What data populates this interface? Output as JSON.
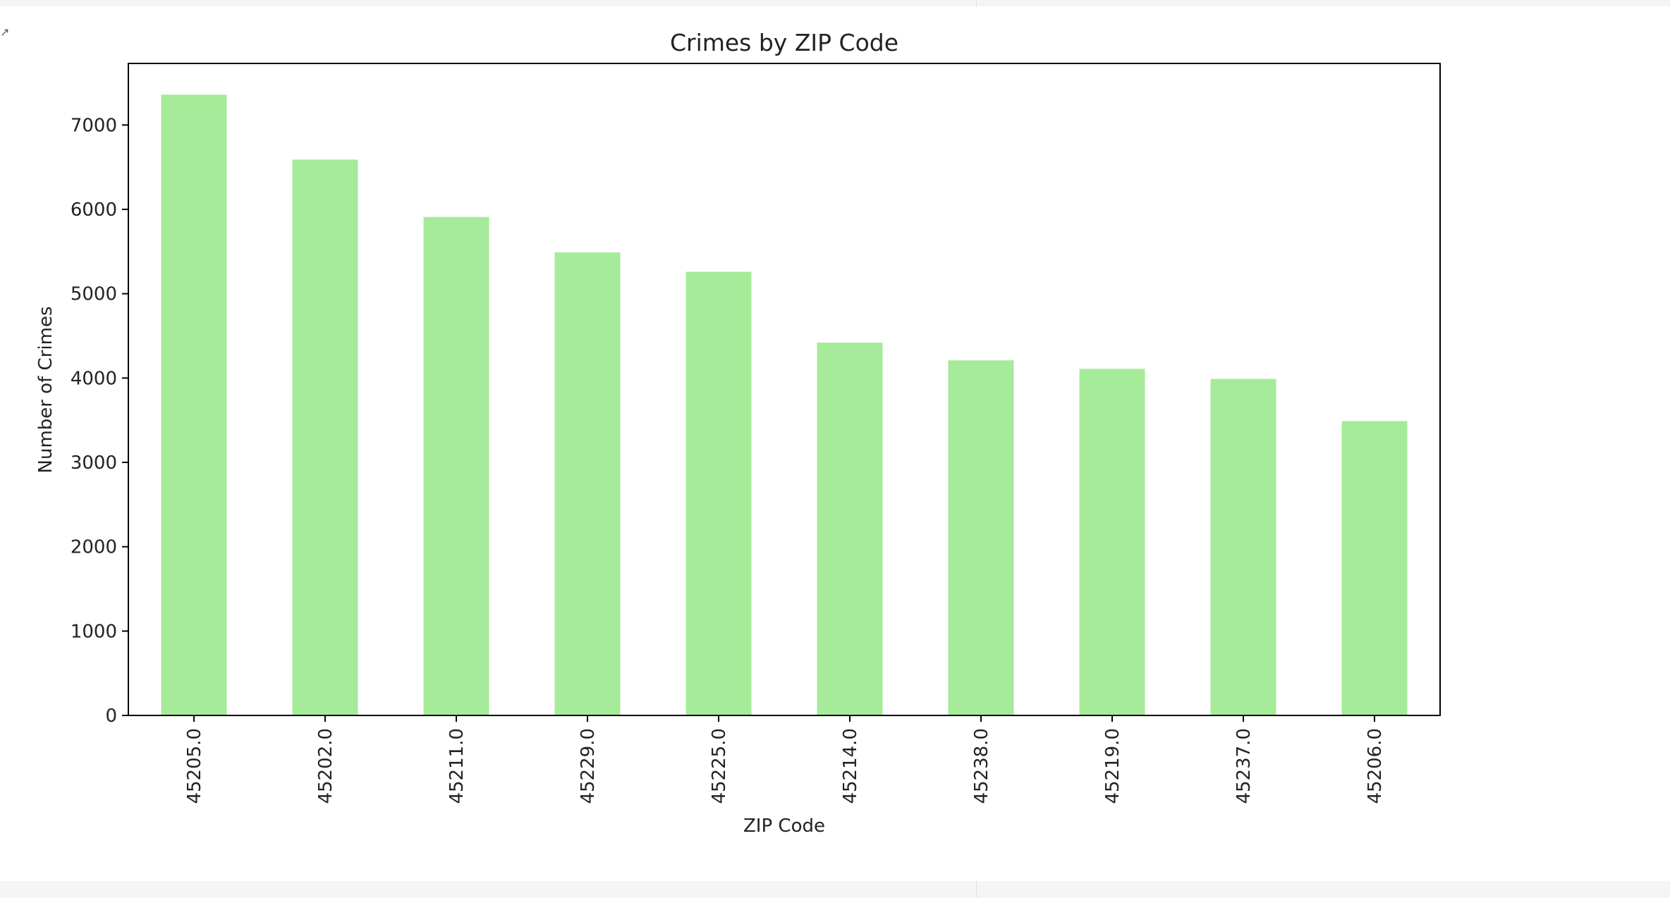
{
  "chart_data": {
    "type": "bar",
    "title": "Crimes by ZIP Code",
    "xlabel": "ZIP Code",
    "ylabel": "Number of Crimes",
    "categories": [
      "45205.0",
      "45202.0",
      "45211.0",
      "45229.0",
      "45225.0",
      "45214.0",
      "45238.0",
      "45219.0",
      "45237.0",
      "45206.0"
    ],
    "values": [
      7360,
      6590,
      5910,
      5490,
      5260,
      4420,
      4210,
      4110,
      3990,
      3490
    ],
    "ylim": [
      0,
      7730
    ],
    "yticks": [
      0,
      1000,
      2000,
      3000,
      4000,
      5000,
      6000,
      7000
    ],
    "bar_color": "#a6eb99",
    "grid": false,
    "legend": "none"
  }
}
